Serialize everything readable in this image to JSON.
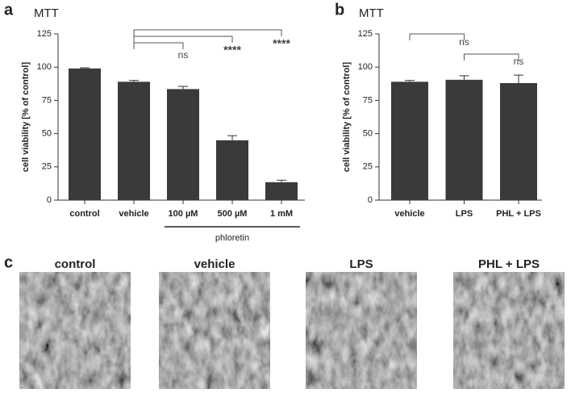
{
  "chart_data": [
    {
      "type": "bar",
      "panel": "a",
      "title": "MTT",
      "y_label": "cell viability [% of control]",
      "categories": [
        "control",
        "vehicle",
        "100 µM",
        "500 µM",
        "1 mM"
      ],
      "values": [
        99,
        89,
        83.5,
        45,
        13.5
      ],
      "errors": [
        0.5,
        1,
        2,
        3.5,
        1.5
      ],
      "color": "#3a3a3a",
      "ylim": [
        0,
        125
      ],
      "yticks": [
        0,
        25,
        50,
        75,
        100,
        125
      ],
      "groups": [
        {
          "label": "phloretin",
          "from": "100 µM",
          "to": "1 mM"
        }
      ],
      "annotations": [
        {
          "text": "ns",
          "between": [
            "vehicle",
            "100 µM"
          ]
        },
        {
          "text": "****",
          "between": [
            "vehicle",
            "500 µM"
          ]
        },
        {
          "text": "****",
          "between": [
            "vehicle",
            "1 mM"
          ]
        }
      ]
    },
    {
      "type": "bar",
      "panel": "b",
      "title": "MTT",
      "y_label": "cell viability [% of control]",
      "categories": [
        "vehicle",
        "LPS",
        "PHL + LPS"
      ],
      "values": [
        89,
        90.5,
        88
      ],
      "errors": [
        1,
        3,
        6
      ],
      "color": "#3a3a3a",
      "ylim": [
        0,
        125
      ],
      "yticks": [
        0,
        25,
        50,
        75,
        100,
        125
      ],
      "annotations": [
        {
          "text": "ns",
          "between": [
            "vehicle",
            "LPS"
          ]
        },
        {
          "text": "ns",
          "between": [
            "LPS",
            "PHL + LPS"
          ]
        }
      ]
    }
  ],
  "micrographs": {
    "panel": "c",
    "labels": [
      "control",
      "vehicle",
      "LPS",
      "PHL + LPS"
    ]
  }
}
